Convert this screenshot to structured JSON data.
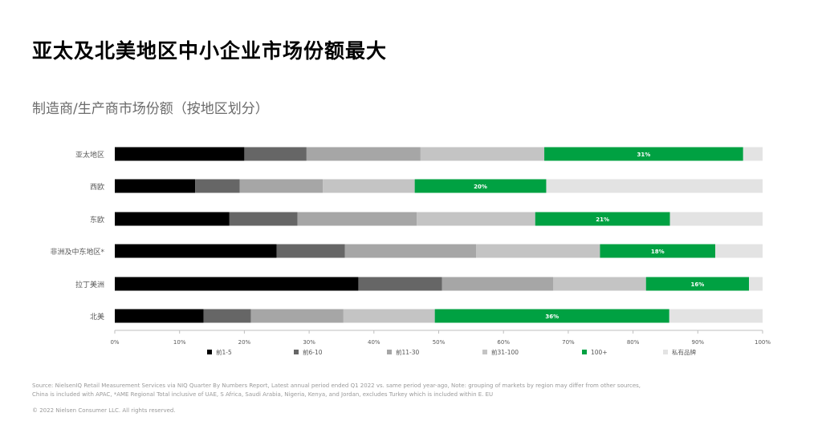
{
  "title": "亚太及北美地区中小企业市场份额最大",
  "subtitle": "制造商/生产商市场份额（按地区划分）",
  "source_text": "Source: NielsenIQ Retail Measurement Services via NIQ Quarter By Numbers Report, Latest annual period ended Q1 2022 vs. same period year-ago, Note: grouping of markets by region may differ from other sources, China is included with APAC, *AME Regional Total inclusive of UAE, S Africa, Saudi Arabia, Nigeria, Kenya, and Jordan, excludes Turkey which is included within E. EU",
  "copyright": "© 2022 Nielsen Consumer LLC. All rights reserved.",
  "chart_data": {
    "type": "bar",
    "orientation": "horizontal",
    "stacked": true,
    "categories": [
      "亚太地区",
      "西欧",
      "东欧",
      "非洲及中东地区*",
      "拉丁美洲",
      "北美"
    ],
    "series": [
      {
        "name": "前1-5",
        "color": "#000000",
        "values": [
          20,
          12.4,
          17.7,
          25,
          37.6,
          13.7
        ]
      },
      {
        "name": "前6-10",
        "color": "#666666",
        "values": [
          9.6,
          6.9,
          10.5,
          10.5,
          12.9,
          7.3
        ]
      },
      {
        "name": "前11-30",
        "color": "#a6a6a6",
        "values": [
          17.6,
          12.8,
          18.4,
          20.3,
          17.2,
          14.3
        ]
      },
      {
        "name": "前31-100",
        "color": "#c4c4c4",
        "values": [
          19.1,
          14.2,
          18.3,
          19.1,
          14.3,
          14.1
        ]
      },
      {
        "name": "100+",
        "color": "#00a142",
        "values": [
          30.7,
          20.3,
          20.8,
          17.8,
          15.9,
          36.2
        ]
      },
      {
        "name": "私有品牌",
        "color": "#e3e3e3",
        "values": [
          3.0,
          33.4,
          14.3,
          7.3,
          2.1,
          14.4
        ]
      }
    ],
    "data_labels": [
      {
        "category": "亚太地区",
        "series": "100+",
        "text": "31%"
      },
      {
        "category": "西欧",
        "series": "100+",
        "text": "20%"
      },
      {
        "category": "东欧",
        "series": "100+",
        "text": "21%"
      },
      {
        "category": "非洲及中东地区*",
        "series": "100+",
        "text": "18%"
      },
      {
        "category": "拉丁美洲",
        "series": "100+",
        "text": "16%"
      },
      {
        "category": "北美",
        "series": "100+",
        "text": "36%"
      }
    ],
    "x_ticks": [
      "0%",
      "10%",
      "20%",
      "30%",
      "40%",
      "50%",
      "60%",
      "70%",
      "80%",
      "90%",
      "100%"
    ],
    "xlim": [
      0,
      100
    ],
    "xlabel": "",
    "ylabel": "",
    "grid": false,
    "legend_position": "bottom"
  }
}
